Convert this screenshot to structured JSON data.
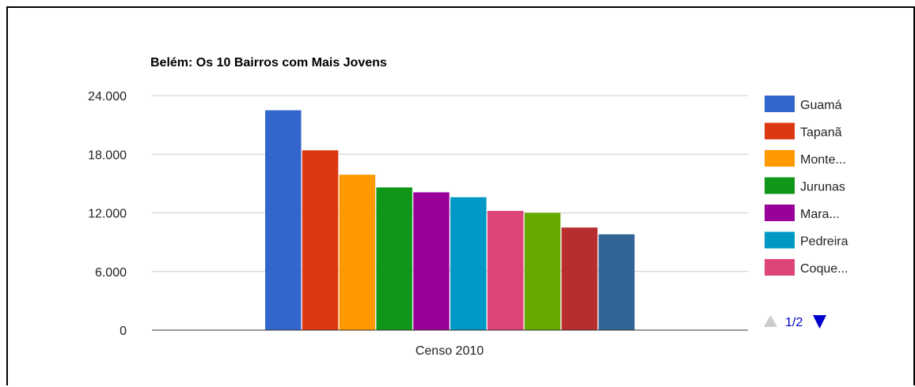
{
  "chart_data": {
    "type": "bar",
    "title": "Belém: Os 10 Bairros com Mais Jovens",
    "categories": [
      "Censo 2010"
    ],
    "series": [
      {
        "name": "Guamá",
        "values": [
          22500
        ],
        "color": "#3366cc"
      },
      {
        "name": "Tapanã",
        "values": [
          18400
        ],
        "color": "#dc3912"
      },
      {
        "name": "Monte...",
        "values": [
          15900
        ],
        "color": "#ff9900"
      },
      {
        "name": "Jurunas",
        "values": [
          14600
        ],
        "color": "#109618"
      },
      {
        "name": "Mara...",
        "values": [
          14100
        ],
        "color": "#990099"
      },
      {
        "name": "Pedreira",
        "values": [
          13600
        ],
        "color": "#0099c6"
      },
      {
        "name": "Coque...",
        "values": [
          12200
        ],
        "color": "#dd4477"
      },
      {
        "name": "",
        "values": [
          12000
        ],
        "color": "#66aa00"
      },
      {
        "name": "",
        "values": [
          10500
        ],
        "color": "#b82e2e"
      },
      {
        "name": "",
        "values": [
          9800
        ],
        "color": "#316395"
      }
    ],
    "ylim": [
      0,
      24000
    ],
    "yticks": [
      0,
      6000,
      12000,
      18000,
      24000
    ],
    "ytick_labels": [
      "0",
      "6.000",
      "12.000",
      "18.000",
      "24.000"
    ],
    "grid": true,
    "legend_position": "right",
    "legend_visible_count": 7,
    "pager": {
      "label": "1/2",
      "up_icon": "triangle-up-icon",
      "down_icon": "triangle-down-icon",
      "up_color": "#cccccc",
      "down_color": "#0000cc"
    },
    "xlabel": "",
    "ylabel": ""
  }
}
